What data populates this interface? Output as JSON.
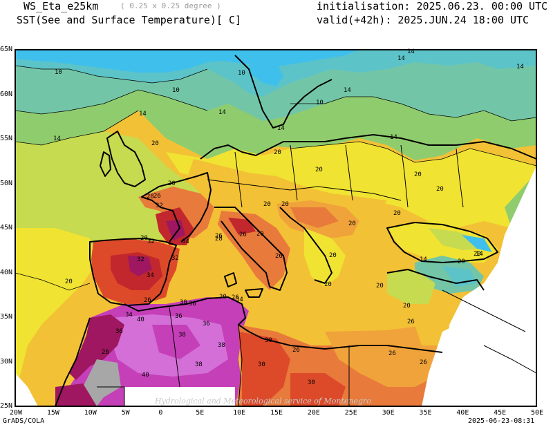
{
  "header": {
    "model": "WS_Eta_e25km",
    "resolution": "( 0.25 x 0.25 degree )",
    "variable": "SST(See and Surface Temperature)[ C]",
    "init": "initialisation: 2025.06.23. 00:00 UTC",
    "valid": "valid(+42h): 2025.JUN.24 18:00 UTC"
  },
  "axes": {
    "lon_labels": [
      "20W",
      "15W",
      "10W",
      "5W",
      "0",
      "5E",
      "10E",
      "15E",
      "20E",
      "25E",
      "30E",
      "35E",
      "40E",
      "45E",
      "50E"
    ],
    "lat_labels": [
      "65N",
      "60N",
      "55N",
      "50N",
      "45N",
      "40N",
      "35N",
      "30N",
      "25N"
    ]
  },
  "contour_labels": [
    "10",
    "10",
    "10",
    "10",
    "14",
    "14",
    "14",
    "14",
    "14",
    "14",
    "14",
    "14",
    "14",
    "14",
    "14",
    "20",
    "20",
    "20",
    "20",
    "20",
    "20",
    "20",
    "20",
    "20",
    "20",
    "20",
    "20",
    "20",
    "20",
    "20",
    "20",
    "20",
    "20",
    "20",
    "26",
    "26",
    "26",
    "26",
    "26",
    "26",
    "26",
    "26",
    "26",
    "26",
    "26",
    "28",
    "28",
    "30",
    "30",
    "30",
    "30",
    "30",
    "32",
    "32",
    "32",
    "32",
    "34",
    "34",
    "34",
    "34",
    "36",
    "36",
    "36",
    "36",
    "38",
    "38",
    "38",
    "40",
    "40"
  ],
  "footer": {
    "left": "GrADS/COLA",
    "right": "2025-06-23-08:31",
    "watermark": "Hydrological and Meteorological service of Montenegro"
  },
  "colors": {
    "t10": "#3fc0ec",
    "t12": "#5cc3c9",
    "t14": "#72c6a7",
    "t16": "#8fcc6e",
    "t18": "#c6db4f",
    "t20": "#f0e332",
    "t24": "#f3c135",
    "t26": "#f0a33a",
    "t28": "#e87a3b",
    "t30": "#dd4a2a",
    "t34": "#c1272d",
    "t36": "#9e1760",
    "t38": "#c53fb8",
    "t40": "#d36fd7",
    "land_no_data": "#ffffff",
    "gray": "#a7a7a7"
  }
}
